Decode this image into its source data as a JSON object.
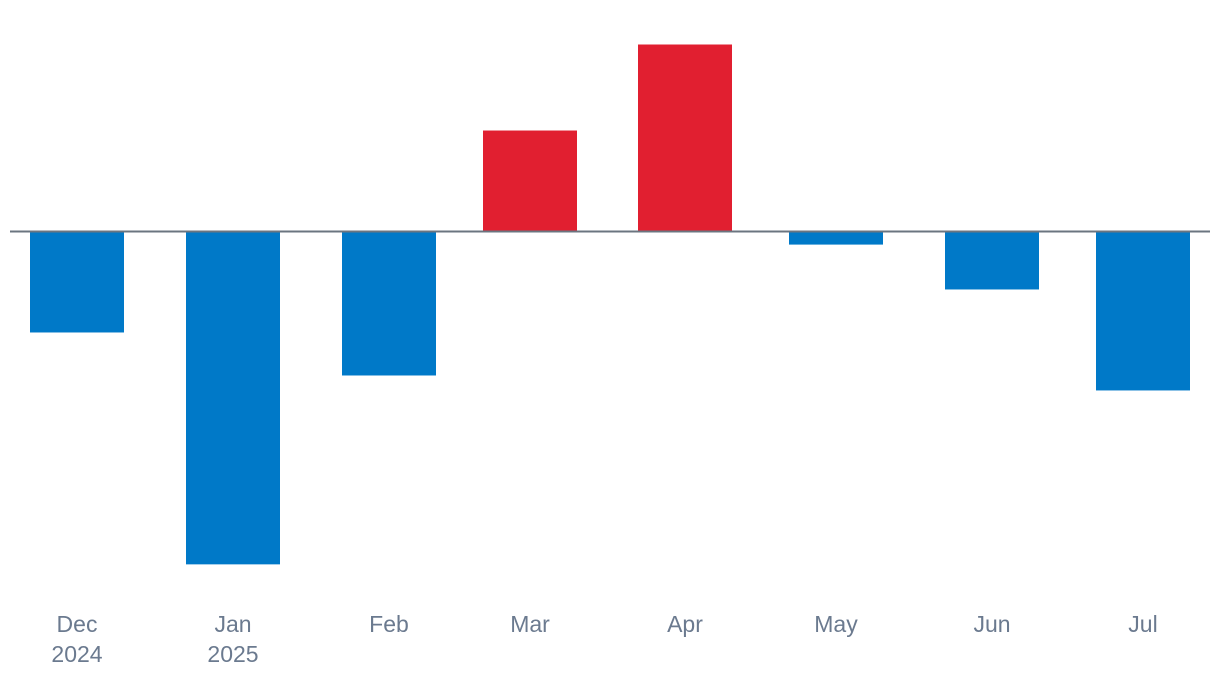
{
  "chart_data": {
    "type": "bar",
    "categories": [
      "Dec 2024",
      "Jan 2025",
      "Feb",
      "Mar",
      "Apr",
      "May",
      "Jun",
      "Jul"
    ],
    "tick_labels": [
      [
        "Dec",
        "2024"
      ],
      [
        "Jan",
        "2025"
      ],
      [
        "Feb"
      ],
      [
        "Mar"
      ],
      [
        "Apr"
      ],
      [
        "May"
      ],
      [
        "Jun"
      ],
      [
        "Jul"
      ]
    ],
    "values": [
      -5.4,
      -17.8,
      -7.7,
      5.4,
      10.0,
      -0.7,
      -3.1,
      -8.5
    ],
    "ylim": [
      -20,
      12
    ],
    "title": "",
    "xlabel": "",
    "ylabel": "",
    "grid": false,
    "colors": {
      "positive": "#e11f30",
      "negative": "#0079c8",
      "baseline": "#6b7580",
      "tick_text": "#6b7a8f"
    }
  }
}
